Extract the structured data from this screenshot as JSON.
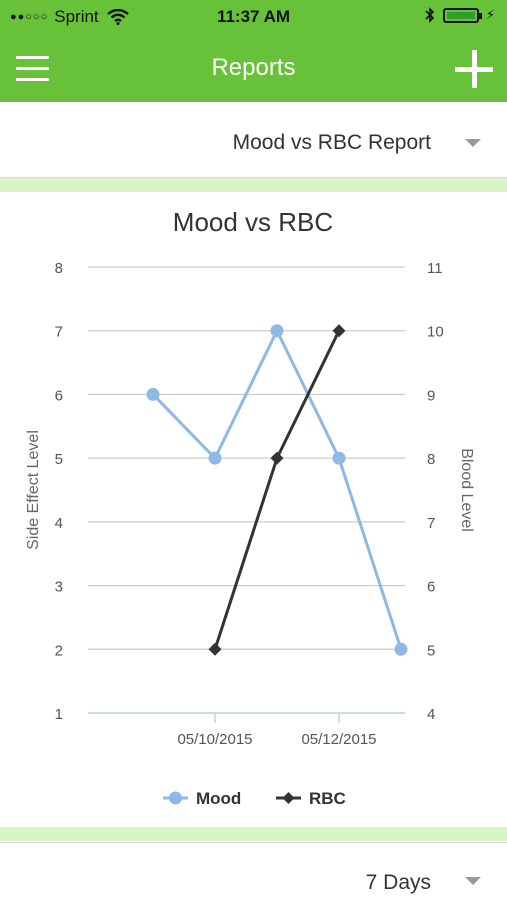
{
  "status": {
    "carrier": "Sprint",
    "time": "11:37 AM"
  },
  "nav": {
    "title": "Reports"
  },
  "report_select": {
    "value": "Mood vs RBC Report"
  },
  "period_select": {
    "value": "7 Days"
  },
  "colors": {
    "brand": "#67c23a",
    "band": "#d9f5c8",
    "mood": "#8db9e4",
    "rbc": "#333333"
  },
  "chart_data": {
    "type": "line",
    "title": "Mood vs RBC",
    "ylabel": "Side Effect Level",
    "y2label": "Blood Level",
    "ylim": [
      1,
      8
    ],
    "y2lim": [
      4,
      11
    ],
    "yticks": [
      "1",
      "2",
      "3",
      "4",
      "5",
      "6",
      "7",
      "8"
    ],
    "y2ticks": [
      "4",
      "5",
      "6",
      "7",
      "8",
      "9",
      "10",
      "11"
    ],
    "xticks": [
      "05/10/2015",
      "05/12/2015"
    ],
    "x": [
      "05/09/2015",
      "05/10/2015",
      "05/11/2015",
      "05/12/2015",
      "05/13/2015"
    ],
    "grid": true,
    "legend": "bottom",
    "series": [
      {
        "name": "Mood",
        "axis": "left",
        "marker": "circle",
        "values": [
          6,
          5,
          7,
          5,
          2
        ]
      },
      {
        "name": "RBC",
        "axis": "right",
        "marker": "diamond",
        "values": [
          null,
          5,
          8,
          10,
          null
        ]
      }
    ]
  }
}
